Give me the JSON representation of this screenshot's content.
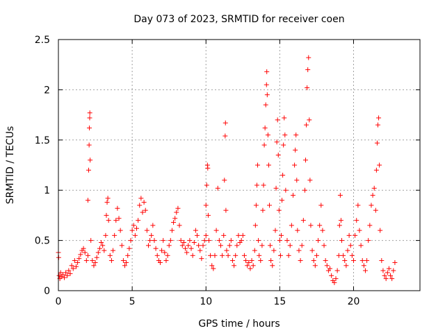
{
  "chart_data": {
    "type": "scatter",
    "title": "Day 073 of 2023, SRMTID for receiver coen",
    "xlabel": "GPS time / hours",
    "ylabel": "SRMTID / TECUs",
    "xlim": [
      0,
      24.5
    ],
    "ylim": [
      0,
      2.5
    ],
    "xticks": [
      0,
      5,
      10,
      15,
      20
    ],
    "xtick_labels": [
      "0",
      "5",
      "10",
      "15",
      "20"
    ],
    "yticks": [
      0,
      0.5,
      1,
      1.5,
      2,
      2.5
    ],
    "ytick_labels": [
      "0",
      "0.5",
      "1",
      "1.5",
      "2",
      "2.5"
    ],
    "grid": true,
    "marker": "+",
    "series": [
      {
        "name": "SRMTID",
        "color": "#ff0000",
        "points": [
          [
            0.0,
            0.38
          ],
          [
            0.02,
            0.33
          ],
          [
            0.05,
            0.15
          ],
          [
            0.1,
            0.12
          ],
          [
            0.15,
            0.18
          ],
          [
            0.2,
            0.14
          ],
          [
            0.3,
            0.16
          ],
          [
            0.4,
            0.13
          ],
          [
            0.5,
            0.18
          ],
          [
            0.6,
            0.15
          ],
          [
            0.7,
            0.2
          ],
          [
            0.8,
            0.17
          ],
          [
            0.9,
            0.25
          ],
          [
            1.0,
            0.22
          ],
          [
            1.1,
            0.3
          ],
          [
            1.2,
            0.24
          ],
          [
            1.3,
            0.28
          ],
          [
            1.4,
            0.32
          ],
          [
            1.5,
            0.36
          ],
          [
            1.6,
            0.4
          ],
          [
            1.7,
            0.42
          ],
          [
            1.8,
            0.38
          ],
          [
            1.9,
            0.3
          ],
          [
            2.0,
            0.35
          ],
          [
            2.0,
            0.9
          ],
          [
            2.05,
            1.2
          ],
          [
            2.08,
            1.45
          ],
          [
            2.1,
            1.62
          ],
          [
            2.12,
            1.72
          ],
          [
            2.13,
            1.77
          ],
          [
            2.15,
            1.3
          ],
          [
            2.2,
            0.5
          ],
          [
            2.3,
            0.3
          ],
          [
            2.4,
            0.25
          ],
          [
            2.5,
            0.28
          ],
          [
            2.6,
            0.33
          ],
          [
            2.7,
            0.38
          ],
          [
            2.8,
            0.42
          ],
          [
            2.9,
            0.48
          ],
          [
            3.0,
            0.45
          ],
          [
            3.1,
            0.4
          ],
          [
            3.2,
            0.55
          ],
          [
            3.25,
            0.75
          ],
          [
            3.3,
            0.88
          ],
          [
            3.35,
            0.92
          ],
          [
            3.4,
            0.7
          ],
          [
            3.5,
            0.35
          ],
          [
            3.6,
            0.3
          ],
          [
            3.7,
            0.4
          ],
          [
            3.8,
            0.55
          ],
          [
            3.9,
            0.7
          ],
          [
            4.0,
            0.82
          ],
          [
            4.1,
            0.72
          ],
          [
            4.2,
            0.6
          ],
          [
            4.3,
            0.45
          ],
          [
            4.4,
            0.3
          ],
          [
            4.5,
            0.25
          ],
          [
            4.6,
            0.28
          ],
          [
            4.7,
            0.35
          ],
          [
            4.8,
            0.42
          ],
          [
            4.9,
            0.5
          ],
          [
            5.0,
            0.6
          ],
          [
            5.1,
            0.65
          ],
          [
            5.2,
            0.55
          ],
          [
            5.3,
            0.62
          ],
          [
            5.4,
            0.7
          ],
          [
            5.5,
            0.85
          ],
          [
            5.6,
            0.92
          ],
          [
            5.7,
            0.78
          ],
          [
            5.8,
            0.88
          ],
          [
            5.9,
            0.8
          ],
          [
            6.0,
            0.6
          ],
          [
            6.1,
            0.45
          ],
          [
            6.2,
            0.5
          ],
          [
            6.3,
            0.55
          ],
          [
            6.4,
            0.65
          ],
          [
            6.5,
            0.5
          ],
          [
            6.6,
            0.42
          ],
          [
            6.7,
            0.35
          ],
          [
            6.8,
            0.3
          ],
          [
            6.9,
            0.28
          ],
          [
            7.0,
            0.4
          ],
          [
            7.1,
            0.5
          ],
          [
            7.2,
            0.38
          ],
          [
            7.3,
            0.3
          ],
          [
            7.4,
            0.35
          ],
          [
            7.5,
            0.45
          ],
          [
            7.6,
            0.5
          ],
          [
            7.7,
            0.6
          ],
          [
            7.8,
            0.68
          ],
          [
            7.9,
            0.72
          ],
          [
            8.0,
            0.78
          ],
          [
            8.1,
            0.82
          ],
          [
            8.2,
            0.65
          ],
          [
            8.3,
            0.5
          ],
          [
            8.4,
            0.45
          ],
          [
            8.5,
            0.48
          ],
          [
            8.6,
            0.42
          ],
          [
            8.7,
            0.38
          ],
          [
            8.8,
            0.45
          ],
          [
            8.9,
            0.5
          ],
          [
            9.0,
            0.42
          ],
          [
            9.1,
            0.35
          ],
          [
            9.2,
            0.48
          ],
          [
            9.3,
            0.6
          ],
          [
            9.4,
            0.55
          ],
          [
            9.5,
            0.45
          ],
          [
            9.6,
            0.4
          ],
          [
            9.7,
            0.32
          ],
          [
            9.8,
            0.45
          ],
          [
            9.9,
            0.5
          ],
          [
            10.0,
            0.55
          ],
          [
            10.0,
            0.85
          ],
          [
            10.05,
            1.05
          ],
          [
            10.1,
            1.25
          ],
          [
            10.12,
            1.22
          ],
          [
            10.15,
            0.75
          ],
          [
            10.2,
            0.5
          ],
          [
            10.3,
            0.35
          ],
          [
            10.4,
            0.25
          ],
          [
            10.5,
            0.22
          ],
          [
            10.6,
            0.35
          ],
          [
            10.7,
            0.6
          ],
          [
            10.8,
            1.02
          ],
          [
            10.9,
            0.5
          ],
          [
            11.0,
            0.45
          ],
          [
            11.1,
            0.35
          ],
          [
            11.2,
            0.55
          ],
          [
            11.25,
            1.1
          ],
          [
            11.3,
            1.54
          ],
          [
            11.32,
            1.67
          ],
          [
            11.35,
            0.8
          ],
          [
            11.4,
            0.4
          ],
          [
            11.5,
            0.35
          ],
          [
            11.6,
            0.45
          ],
          [
            11.7,
            0.5
          ],
          [
            11.8,
            0.3
          ],
          [
            11.9,
            0.25
          ],
          [
            12.0,
            0.35
          ],
          [
            12.1,
            0.45
          ],
          [
            12.2,
            0.55
          ],
          [
            12.3,
            0.48
          ],
          [
            12.4,
            0.5
          ],
          [
            12.5,
            0.55
          ],
          [
            12.6,
            0.35
          ],
          [
            12.7,
            0.3
          ],
          [
            12.8,
            0.25
          ],
          [
            12.9,
            0.28
          ],
          [
            13.0,
            0.22
          ],
          [
            13.1,
            0.3
          ],
          [
            13.2,
            0.25
          ],
          [
            13.3,
            0.4
          ],
          [
            13.35,
            0.65
          ],
          [
            13.4,
            0.85
          ],
          [
            13.45,
            1.05
          ],
          [
            13.5,
            1.25
          ],
          [
            13.55,
            0.5
          ],
          [
            13.6,
            0.35
          ],
          [
            13.7,
            0.3
          ],
          [
            13.8,
            0.45
          ],
          [
            13.85,
            0.8
          ],
          [
            13.9,
            1.05
          ],
          [
            13.95,
            1.45
          ],
          [
            14.0,
            1.62
          ],
          [
            14.05,
            1.85
          ],
          [
            14.1,
            2.05
          ],
          [
            14.12,
            2.18
          ],
          [
            14.15,
            1.95
          ],
          [
            14.2,
            1.55
          ],
          [
            14.25,
            1.25
          ],
          [
            14.3,
            0.85
          ],
          [
            14.35,
            0.45
          ],
          [
            14.4,
            0.3
          ],
          [
            14.5,
            0.25
          ],
          [
            14.6,
            0.4
          ],
          [
            14.7,
            0.6
          ],
          [
            14.75,
            1.02
          ],
          [
            14.8,
            1.48
          ],
          [
            14.85,
            1.7
          ],
          [
            14.9,
            1.35
          ],
          [
            14.95,
            0.8
          ],
          [
            15.0,
            0.5
          ],
          [
            15.05,
            0.35
          ],
          [
            15.1,
            0.55
          ],
          [
            15.15,
            0.9
          ],
          [
            15.2,
            1.15
          ],
          [
            15.25,
            1.45
          ],
          [
            15.3,
            1.72
          ],
          [
            15.35,
            1.55
          ],
          [
            15.4,
            1.0
          ],
          [
            15.5,
            0.5
          ],
          [
            15.6,
            0.35
          ],
          [
            15.7,
            0.45
          ],
          [
            15.8,
            0.65
          ],
          [
            15.9,
            0.95
          ],
          [
            16.0,
            1.25
          ],
          [
            16.05,
            1.4
          ],
          [
            16.1,
            1.55
          ],
          [
            16.15,
            1.1
          ],
          [
            16.2,
            0.6
          ],
          [
            16.3,
            0.4
          ],
          [
            16.4,
            0.3
          ],
          [
            16.5,
            0.45
          ],
          [
            16.6,
            0.7
          ],
          [
            16.7,
            1.0
          ],
          [
            16.75,
            1.3
          ],
          [
            16.8,
            1.65
          ],
          [
            16.85,
            2.02
          ],
          [
            16.9,
            2.2
          ],
          [
            16.95,
            2.32
          ],
          [
            17.0,
            1.7
          ],
          [
            17.05,
            1.1
          ],
          [
            17.1,
            0.65
          ],
          [
            17.2,
            0.4
          ],
          [
            17.3,
            0.3
          ],
          [
            17.4,
            0.25
          ],
          [
            17.5,
            0.35
          ],
          [
            17.6,
            0.5
          ],
          [
            17.7,
            0.65
          ],
          [
            17.8,
            0.85
          ],
          [
            17.9,
            0.6
          ],
          [
            18.0,
            0.45
          ],
          [
            18.1,
            0.3
          ],
          [
            18.2,
            0.25
          ],
          [
            18.3,
            0.2
          ],
          [
            18.4,
            0.22
          ],
          [
            18.5,
            0.15
          ],
          [
            18.6,
            0.1
          ],
          [
            18.7,
            0.08
          ],
          [
            18.8,
            0.12
          ],
          [
            18.9,
            0.2
          ],
          [
            19.0,
            0.35
          ],
          [
            19.05,
            0.65
          ],
          [
            19.1,
            0.95
          ],
          [
            19.15,
            0.7
          ],
          [
            19.2,
            0.5
          ],
          [
            19.3,
            0.35
          ],
          [
            19.4,
            0.3
          ],
          [
            19.5,
            0.25
          ],
          [
            19.6,
            0.4
          ],
          [
            19.7,
            0.55
          ],
          [
            19.8,
            0.45
          ],
          [
            19.9,
            0.35
          ],
          [
            20.0,
            0.3
          ],
          [
            20.1,
            0.55
          ],
          [
            20.2,
            0.7
          ],
          [
            20.3,
            0.85
          ],
          [
            20.4,
            0.6
          ],
          [
            20.5,
            0.45
          ],
          [
            20.6,
            0.3
          ],
          [
            20.7,
            0.25
          ],
          [
            20.8,
            0.2
          ],
          [
            20.9,
            0.3
          ],
          [
            21.0,
            0.5
          ],
          [
            21.1,
            0.65
          ],
          [
            21.2,
            0.85
          ],
          [
            21.3,
            0.95
          ],
          [
            21.4,
            1.02
          ],
          [
            21.5,
            0.8
          ],
          [
            21.55,
            1.2
          ],
          [
            21.6,
            1.47
          ],
          [
            21.65,
            1.65
          ],
          [
            21.7,
            1.72
          ],
          [
            21.75,
            1.25
          ],
          [
            21.8,
            0.6
          ],
          [
            21.9,
            0.3
          ],
          [
            22.0,
            0.2
          ],
          [
            22.1,
            0.15
          ],
          [
            22.2,
            0.12
          ],
          [
            22.3,
            0.18
          ],
          [
            22.4,
            0.22
          ],
          [
            22.5,
            0.15
          ],
          [
            22.6,
            0.12
          ],
          [
            22.7,
            0.2
          ],
          [
            22.8,
            0.28
          ]
        ]
      }
    ]
  }
}
